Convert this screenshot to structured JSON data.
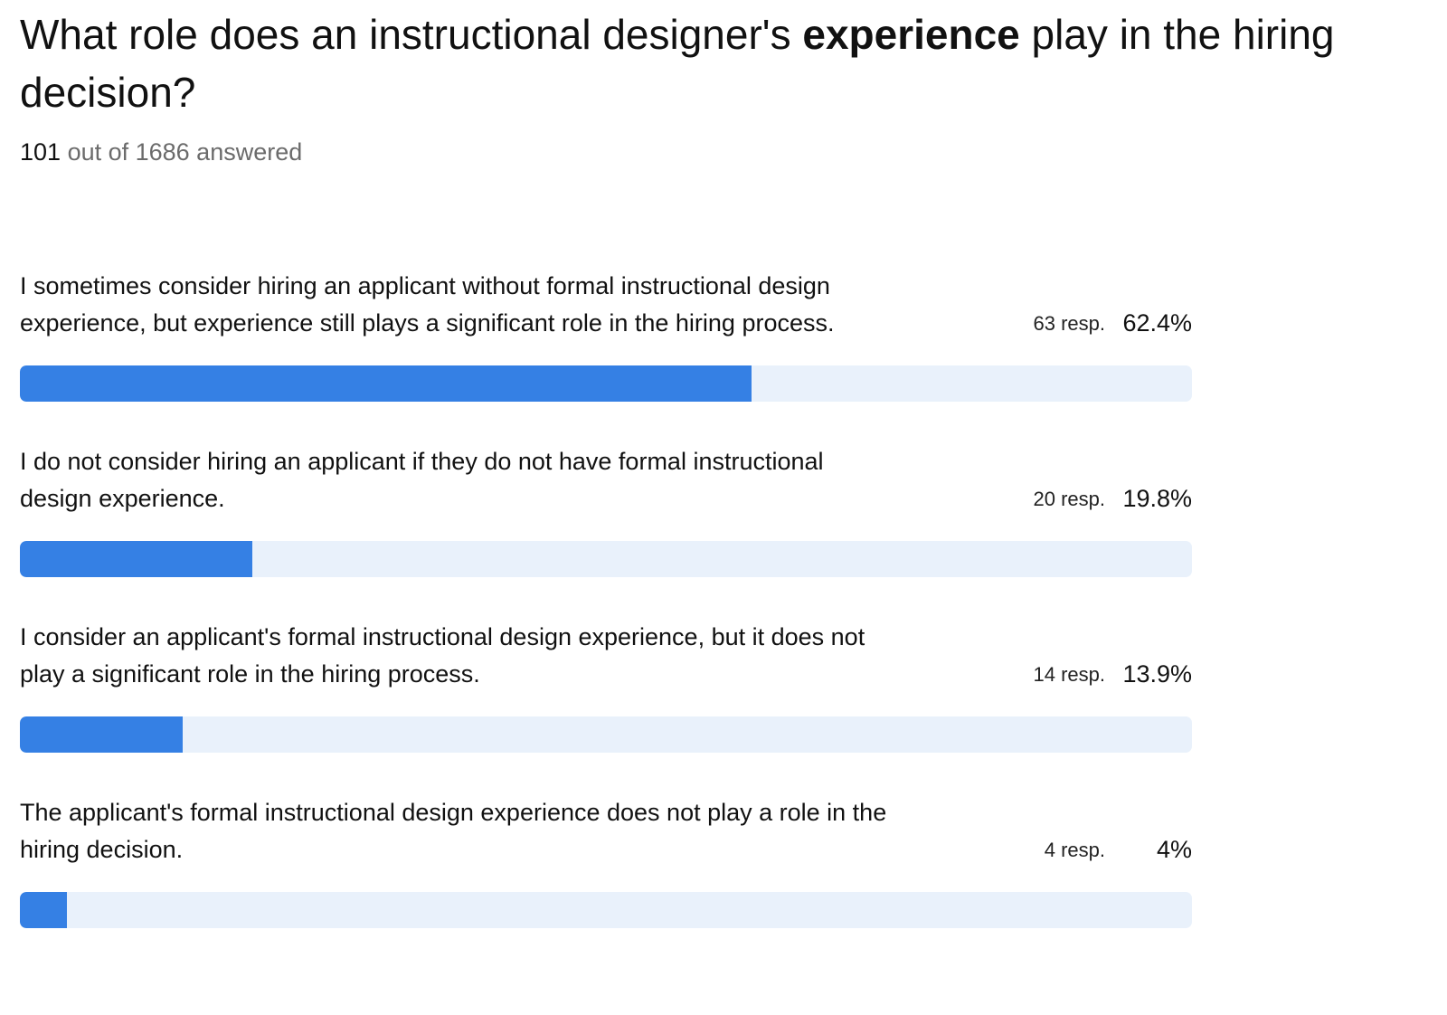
{
  "question": {
    "title_line1_before": "What role does an instructional designer's ",
    "title_bold": "experience",
    "title_line1_after": " play in the hiring",
    "title_line2": "decision?",
    "answered_count": "101",
    "answered_suffix": " out of 1686 answered"
  },
  "colors": {
    "bar_fill": "#3580e4",
    "bar_track": "#e9f1fb"
  },
  "chart_data": {
    "type": "bar",
    "orientation": "horizontal",
    "title": "What role does an instructional designer's experience play in the hiring decision?",
    "xlim": [
      0,
      100
    ],
    "categories": [
      "I sometimes consider hiring an applicant without formal instructional design experience, but experience still plays a significant role in the hiring process.",
      "I do not consider hiring an applicant if they do not have formal instructional design experience.",
      "I consider an applicant's formal instructional design experience, but it does not play a significant role in the hiring process.",
      "The applicant's formal instructional design experience does not play a role in the hiring decision."
    ],
    "values": [
      62.4,
      19.8,
      13.9,
      4
    ],
    "responses": [
      63,
      20,
      14,
      4
    ],
    "items": [
      {
        "label_lines": [
          "I sometimes consider hiring an applicant without formal instructional design",
          "experience, but experience still plays a significant role in the hiring process."
        ],
        "resp_text": "63 resp.",
        "pct_text": "62.4%",
        "value": 62.4
      },
      {
        "label_lines": [
          "I do not consider hiring an applicant if they do not have formal instructional",
          "design experience."
        ],
        "resp_text": "20 resp.",
        "pct_text": "19.8%",
        "value": 19.8
      },
      {
        "label_lines": [
          "I consider an applicant's formal instructional design experience, but it does not",
          "play a significant role in the hiring process."
        ],
        "resp_text": "14 resp.",
        "pct_text": "13.9%",
        "value": 13.9
      },
      {
        "label_lines": [
          "The applicant's formal instructional design experience does not play a role in the",
          "hiring decision."
        ],
        "resp_text": "4 resp.",
        "pct_text": "4%",
        "value": 4
      }
    ]
  }
}
